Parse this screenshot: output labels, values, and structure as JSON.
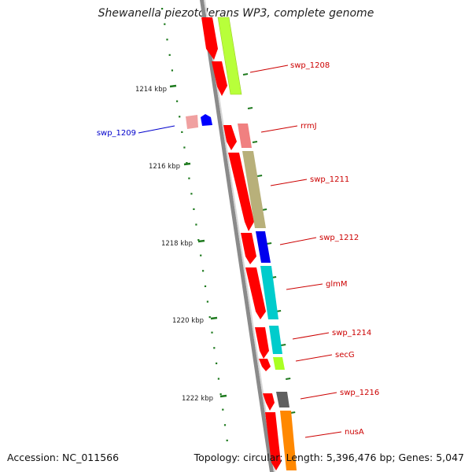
{
  "title": "Shewanella piezotolerans WP3, complete genome",
  "footer": {
    "accession": "Accession: NC_011566",
    "topology": "Topology: circular; Length: 5,396,476 bp; Genes: 5,047"
  },
  "colors": {
    "backbone": "#8c8c8c",
    "tick": "#1e7a1e",
    "label": "#cc0000",
    "label_blue": "#0000cc"
  },
  "scale_labels": [
    "1214 kbp",
    "1216 kbp",
    "1218 kbp",
    "1220 kbp",
    "1222 kbp"
  ],
  "gene_labels": [
    "swp_1208",
    "swp_1209",
    "rrmJ",
    "swp_1211",
    "swp_1212",
    "glmM",
    "swp_1214",
    "secG",
    "swp_1216",
    "nusA"
  ]
}
